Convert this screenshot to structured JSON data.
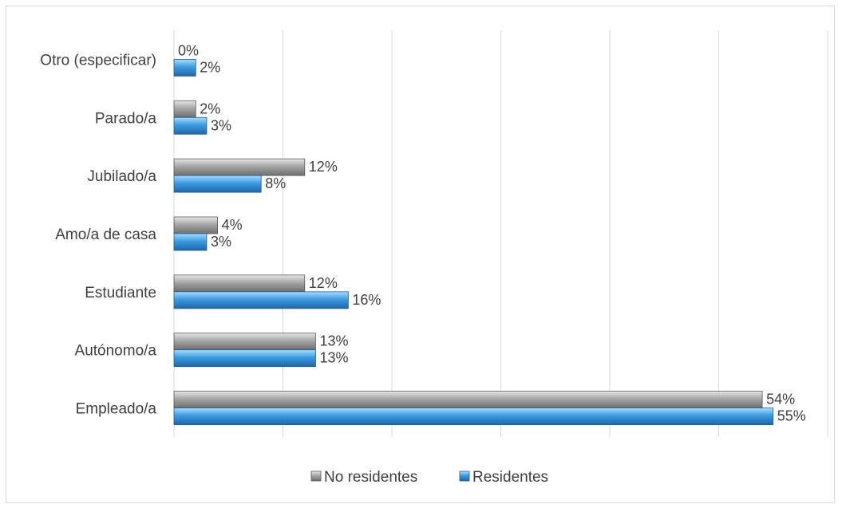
{
  "chart_data": {
    "type": "bar",
    "orientation": "horizontal",
    "categories": [
      "Empleado/a",
      "Autónomo/a",
      "Estudiante",
      "Amo/a de casa",
      "Jubilado/a",
      "Parado/a",
      "Otro (especificar)"
    ],
    "series": [
      {
        "name": "No residentes",
        "values": [
          54,
          13,
          12,
          4,
          12,
          2,
          0
        ],
        "labels": [
          "54%",
          "13%",
          "12%",
          "4%",
          "12%",
          "2%",
          "0%"
        ],
        "color": "#a6a6a6"
      },
      {
        "name": "Residentes",
        "values": [
          55,
          13,
          16,
          3,
          8,
          3,
          2
        ],
        "labels": [
          "55%",
          "13%",
          "16%",
          "3%",
          "8%",
          "3%",
          "2%"
        ],
        "color": "#3d9be0"
      }
    ],
    "xlim": [
      0,
      60
    ],
    "grid": true,
    "legend_position": "bottom"
  }
}
